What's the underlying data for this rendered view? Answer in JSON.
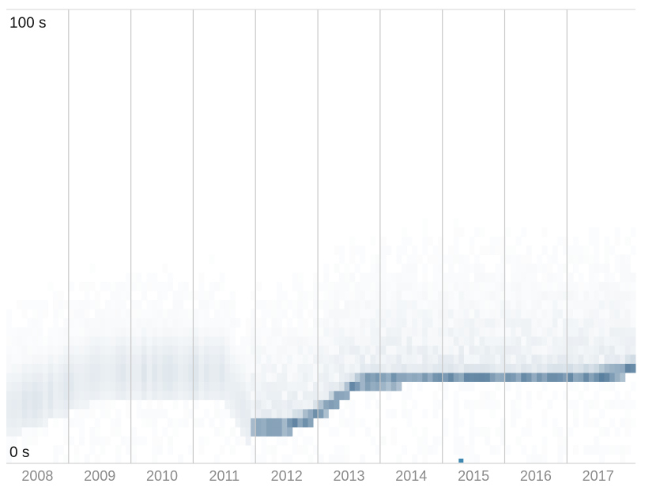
{
  "chart_data": {
    "type": "heatmap",
    "x_axis": {
      "tick_labels": [
        "2008",
        "2009",
        "2010",
        "2011",
        "2012",
        "2013",
        "2014",
        "2015",
        "2016",
        "2017"
      ],
      "range": [
        2007.5,
        2017.6
      ]
    },
    "y_axis": {
      "top_label": "100 s",
      "bottom_label": "0 s",
      "range": [
        0,
        100
      ],
      "unit": "s"
    },
    "grid": true,
    "colors": {
      "low": "#ffffff",
      "high": "#2f5f86",
      "grid": "#c8c8c8",
      "outlier": "#3d87b0"
    },
    "time_steps_per_year": 12,
    "value_bins": 50,
    "dense_band_center_s": [
      {
        "x": 2007.5,
        "y": 12
      },
      {
        "x": 2008.0,
        "y": 14
      },
      {
        "x": 2009.0,
        "y": 20
      },
      {
        "x": 2010.0,
        "y": 20
      },
      {
        "x": 2011.0,
        "y": 20
      },
      {
        "x": 2011.45,
        "y": 8
      },
      {
        "x": 2012.0,
        "y": 8
      },
      {
        "x": 2012.4,
        "y": 10
      },
      {
        "x": 2012.9,
        "y": 15
      },
      {
        "x": 2013.2,
        "y": 18
      },
      {
        "x": 2014.0,
        "y": 18.5
      },
      {
        "x": 2015.0,
        "y": 18.5
      },
      {
        "x": 2016.0,
        "y": 18.5
      },
      {
        "x": 2017.0,
        "y": 19
      },
      {
        "x": 2017.6,
        "y": 21
      }
    ],
    "outlier_points": [
      {
        "x": 2014.8,
        "y": 0
      }
    ]
  }
}
